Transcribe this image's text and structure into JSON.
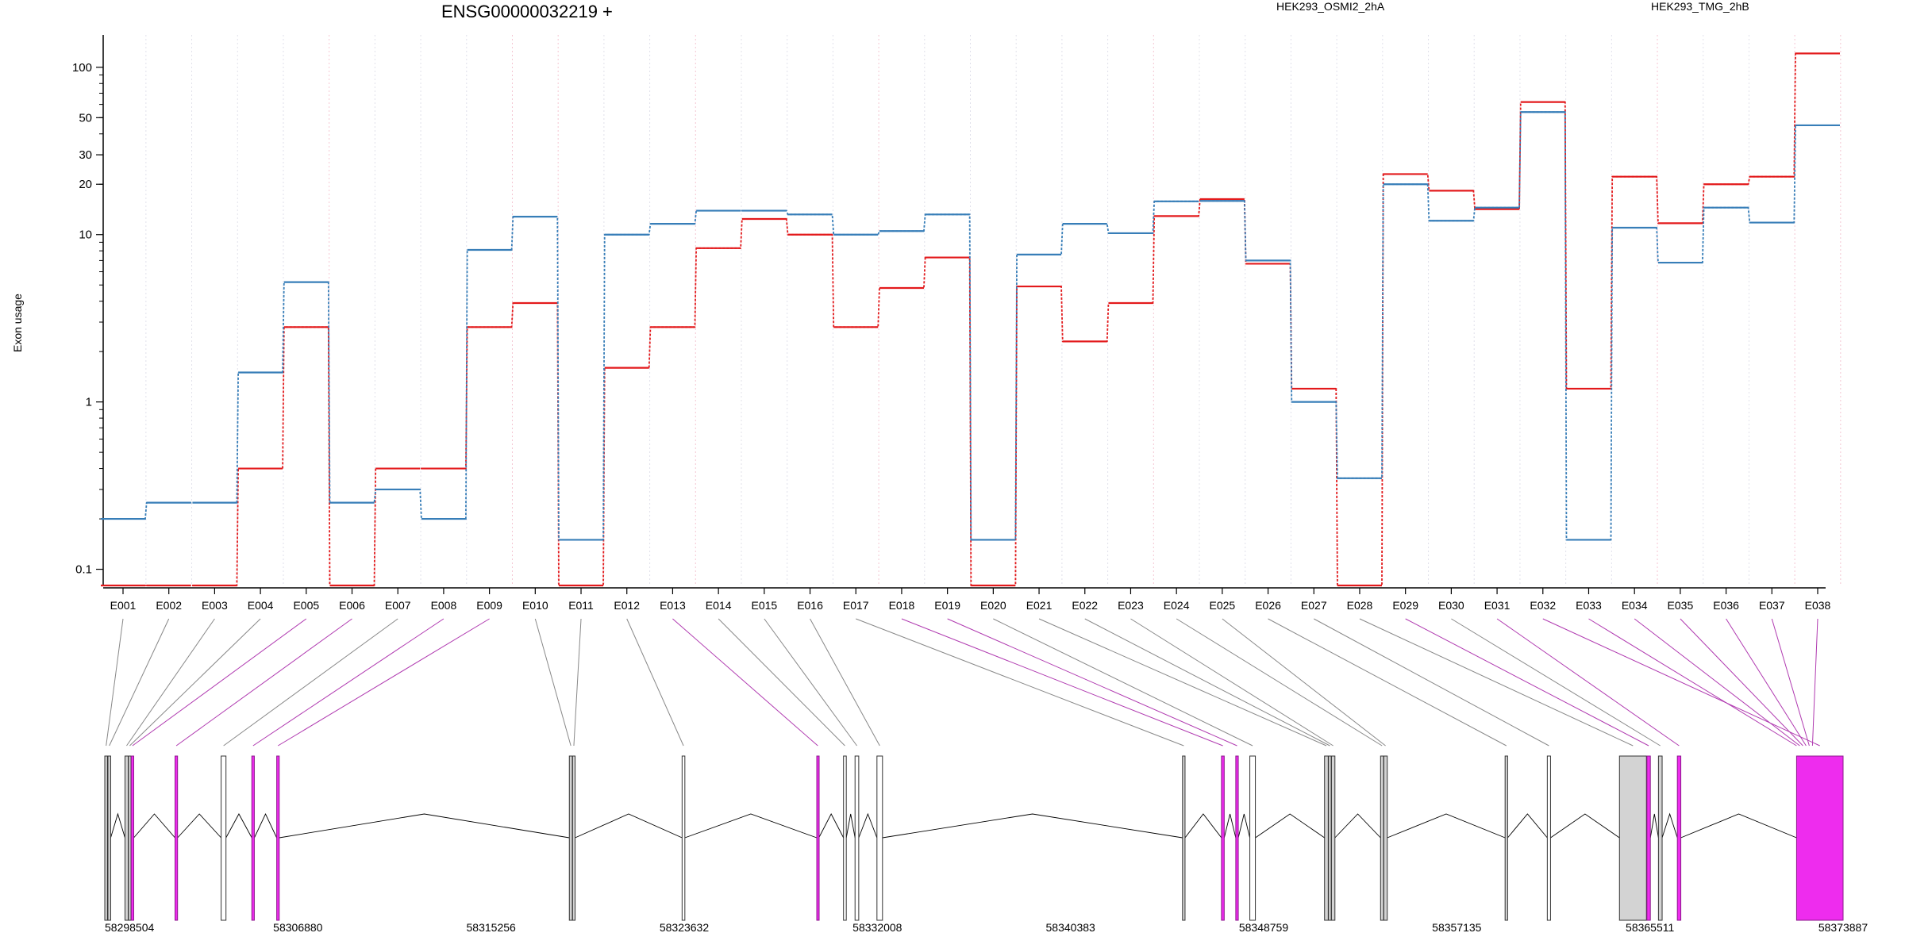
{
  "chart_data": {
    "type": "line",
    "title": "ENSG00000032219 +",
    "xlabel": "",
    "ylabel": "Exon usage",
    "yscale": "log",
    "ylim": [
      0.08,
      140
    ],
    "yticks": [
      0.1,
      1,
      10,
      20,
      30,
      50,
      100
    ],
    "ytick_labels": [
      "0.1",
      "1",
      "10",
      "20",
      "30",
      "50",
      "100"
    ],
    "grid": "vertical dotted",
    "legend_position": "top",
    "categories": [
      "E001",
      "E002",
      "E003",
      "E004",
      "E005",
      "E006",
      "E007",
      "E008",
      "E009",
      "E010",
      "E011",
      "E012",
      "E013",
      "E014",
      "E015",
      "E016",
      "E017",
      "E018",
      "E019",
      "E020",
      "E021",
      "E022",
      "E023",
      "E024",
      "E025",
      "E026",
      "E027",
      "E028",
      "E029",
      "E030",
      "E031",
      "E032",
      "E033",
      "E034",
      "E035",
      "E036",
      "E037",
      "E038"
    ],
    "series": [
      {
        "name": "HEK293_OSMI2_2hA",
        "color": "#e31a1c",
        "values": [
          0.08,
          0.08,
          0.08,
          0.4,
          2.8,
          0.08,
          0.4,
          0.4,
          2.8,
          3.9,
          0.08,
          1.6,
          2.8,
          8.3,
          12.4,
          10.0,
          2.8,
          4.8,
          7.3,
          0.08,
          4.9,
          2.3,
          3.9,
          12.9,
          16.3,
          6.7,
          1.2,
          0.08,
          23.0,
          18.3,
          14.2,
          62.0,
          1.2,
          22.2,
          11.7,
          20.0,
          22.2,
          121.0
        ]
      },
      {
        "name": "HEK293_TMG_2hB",
        "color": "#377eb8",
        "values": [
          0.2,
          0.25,
          0.25,
          1.5,
          5.2,
          0.25,
          0.3,
          0.2,
          8.1,
          12.8,
          0.15,
          10.0,
          11.6,
          13.9,
          13.9,
          13.2,
          10.0,
          10.5,
          13.2,
          0.15,
          7.6,
          11.6,
          10.2,
          15.8,
          15.9,
          7.0,
          1.0,
          0.35,
          20.0,
          12.1,
          14.5,
          54.0,
          0.15,
          11.0,
          6.8,
          14.5,
          11.8,
          45.0
        ]
      }
    ],
    "genomic_axis_labels": [
      "58298504",
      "58306880",
      "58315256",
      "58323632",
      "58332008",
      "58340383",
      "58348759",
      "58357135",
      "58365511",
      "58373887"
    ],
    "gene_model": {
      "range": [
        58298504,
        58373887
      ],
      "exons": [
        {
          "id": "E001",
          "start": 58298504,
          "end": 58298620,
          "color": "#d3d3d3"
        },
        {
          "id": "E002",
          "start": 58298640,
          "end": 58298760,
          "color": "#d3d3d3"
        },
        {
          "id": "E003",
          "start": 58299380,
          "end": 58299520,
          "color": "#d3d3d3"
        },
        {
          "id": "E004",
          "start": 58299530,
          "end": 58299640,
          "color": "#d3d3d3"
        },
        {
          "id": "E005",
          "start": 58299650,
          "end": 58299760,
          "color": "#ee2cee"
        },
        {
          "id": "E006",
          "start": 58301550,
          "end": 58301660,
          "color": "#ee2cee"
        },
        {
          "id": "E007",
          "start": 58303550,
          "end": 58303760,
          "color": "#ffffff"
        },
        {
          "id": "E008",
          "start": 58304880,
          "end": 58304990,
          "color": "#ee2cee"
        },
        {
          "id": "E009",
          "start": 58305960,
          "end": 58306070,
          "color": "#ee2cee"
        },
        {
          "id": "E010",
          "start": 58318650,
          "end": 58318780,
          "color": "#d3d3d3"
        },
        {
          "id": "E011",
          "start": 58318790,
          "end": 58318900,
          "color": "#d3d3d3"
        },
        {
          "id": "E012",
          "start": 58323540,
          "end": 58323660,
          "color": "#ffffff"
        },
        {
          "id": "E013",
          "start": 58329380,
          "end": 58329470,
          "color": "#ee2cee"
        },
        {
          "id": "E014",
          "start": 58330540,
          "end": 58330660,
          "color": "#ffffff"
        },
        {
          "id": "E015",
          "start": 58331040,
          "end": 58331200,
          "color": "#ffffff"
        },
        {
          "id": "E016",
          "start": 58331990,
          "end": 58332230,
          "color": "#ffffff"
        },
        {
          "id": "E017",
          "start": 58345240,
          "end": 58345350,
          "color": "#d3d3d3"
        },
        {
          "id": "E018",
          "start": 58346930,
          "end": 58347050,
          "color": "#ee2cee"
        },
        {
          "id": "E019",
          "start": 58347550,
          "end": 58347660,
          "color": "#ee2cee"
        },
        {
          "id": "E020",
          "start": 58348160,
          "end": 58348400,
          "color": "#ffffff"
        },
        {
          "id": "E021",
          "start": 58351400,
          "end": 58351560,
          "color": "#d3d3d3"
        },
        {
          "id": "E022",
          "start": 58351570,
          "end": 58351690,
          "color": "#d3d3d3"
        },
        {
          "id": "E023",
          "start": 58351700,
          "end": 58351850,
          "color": "#d3d3d3"
        },
        {
          "id": "E024",
          "start": 58353830,
          "end": 58353960,
          "color": "#d3d3d3"
        },
        {
          "id": "E025",
          "start": 58353970,
          "end": 58354120,
          "color": "#d3d3d3"
        },
        {
          "id": "E026",
          "start": 58359230,
          "end": 58359340,
          "color": "#d3d3d3"
        },
        {
          "id": "E027",
          "start": 58361060,
          "end": 58361200,
          "color": "#ffffff"
        },
        {
          "id": "E028",
          "start": 58364190,
          "end": 58365360,
          "color": "#d3d3d3"
        },
        {
          "id": "E029",
          "start": 58365380,
          "end": 58365530,
          "color": "#ee2cee"
        },
        {
          "id": "E030",
          "start": 58365880,
          "end": 58366040,
          "color": "#d3d3d3"
        },
        {
          "id": "E031",
          "start": 58366700,
          "end": 58366850,
          "color": "#ee2cee"
        },
        {
          "id": "E032",
          "start": 58371870,
          "end": 58373887,
          "color": "#ee2cee"
        }
      ]
    }
  }
}
